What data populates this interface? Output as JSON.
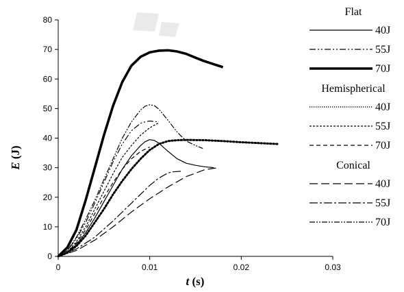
{
  "chart_data": {
    "type": "line",
    "xlabel": {
      "italic": "t",
      "unit": " (s)"
    },
    "ylabel": {
      "italic": "E",
      "unit": " (J)"
    },
    "xlim": [
      0,
      0.03
    ],
    "ylim": [
      0,
      80
    ],
    "x_ticks": [
      "0",
      "0.01",
      "0.02",
      "0.03"
    ],
    "y_ticks": [
      "0",
      "10",
      "20",
      "30",
      "40",
      "50",
      "60",
      "70",
      "80"
    ],
    "grid": false,
    "legend_position": "right",
    "legend_groups": [
      {
        "title": "Flat",
        "series": [
          "flat-40",
          "flat-55",
          "flat-70"
        ]
      },
      {
        "title": "Hemispherical",
        "series": [
          "hemi-40",
          "hemi-55",
          "hemi-70"
        ]
      },
      {
        "title": "Conical",
        "series": [
          "con-40",
          "con-55",
          "con-70"
        ]
      }
    ],
    "series": [
      {
        "id": "flat-40",
        "name": "40J",
        "color": "#000000",
        "width": 1.2,
        "dash": "",
        "x": [
          0,
          0.001,
          0.002,
          0.003,
          0.004,
          0.005,
          0.006,
          0.007,
          0.008,
          0.009,
          0.0095,
          0.01,
          0.0105,
          0.011,
          0.012,
          0.013,
          0.014,
          0.015,
          0.016,
          0.017
        ],
        "y": [
          0,
          1.5,
          4,
          8,
          13,
          18.5,
          24,
          29.5,
          34,
          37.5,
          38.8,
          39.5,
          39.2,
          38.3,
          35.5,
          33,
          31.5,
          30.8,
          30.3,
          30
        ]
      },
      {
        "id": "flat-55",
        "name": "55J",
        "color": "#000000",
        "width": 1.2,
        "dash": "9 3 2 3 2 3",
        "x": [
          0,
          0.001,
          0.002,
          0.003,
          0.004,
          0.005,
          0.006,
          0.007,
          0.008,
          0.009,
          0.0095,
          0.01,
          0.0105,
          0.011
        ],
        "y": [
          0,
          2,
          6,
          11.5,
          18,
          25,
          32,
          38,
          42.5,
          45,
          45.5,
          45.8,
          45.6,
          45.5
        ]
      },
      {
        "id": "flat-70",
        "name": "70J",
        "color": "#000000",
        "width": 3.6,
        "dash": "",
        "x": [
          0,
          0.001,
          0.002,
          0.003,
          0.004,
          0.005,
          0.006,
          0.007,
          0.008,
          0.009,
          0.01,
          0.011,
          0.012,
          0.013,
          0.014,
          0.015,
          0.016,
          0.017,
          0.018
        ],
        "y": [
          0,
          3,
          9,
          19,
          30,
          41,
          51,
          59,
          64.5,
          67.5,
          69,
          69.6,
          69.7,
          69.3,
          68.5,
          67.2,
          66,
          65,
          64
        ]
      },
      {
        "id": "hemi-40",
        "name": "40J",
        "color": "#000000",
        "width": 3.0,
        "dash": "1.5 3",
        "x": [
          0,
          0.001,
          0.002,
          0.003,
          0.004,
          0.005,
          0.006,
          0.007,
          0.008,
          0.009,
          0.01,
          0.011,
          0.012,
          0.013,
          0.014,
          0.016,
          0.018,
          0.02,
          0.022,
          0.024
        ],
        "y": [
          0,
          1.2,
          3.5,
          7,
          11.5,
          16,
          21,
          25.5,
          29.5,
          33,
          36,
          38,
          39,
          39.3,
          39.4,
          39.3,
          39,
          38.6,
          38.3,
          38
        ]
      },
      {
        "id": "hemi-55",
        "name": "55J",
        "color": "#000000",
        "width": 1.2,
        "dash": "3 2",
        "x": [
          0,
          0.001,
          0.002,
          0.003,
          0.004,
          0.005,
          0.006,
          0.007,
          0.008,
          0.009,
          0.01,
          0.011
        ],
        "y": [
          0,
          1.5,
          5,
          10,
          16,
          22,
          28,
          33.5,
          37.5,
          41,
          43.5,
          45.2
        ]
      },
      {
        "id": "hemi-70",
        "name": "70J",
        "color": "#000000",
        "width": 1.2,
        "dash": "6 4",
        "x": [
          0,
          0.001,
          0.002,
          0.003,
          0.004,
          0.005,
          0.006,
          0.007,
          0.008,
          0.009,
          0.01
        ],
        "y": [
          0,
          1.5,
          4.5,
          9,
          14.5,
          20,
          25,
          29.5,
          33,
          35.5,
          37
        ]
      },
      {
        "id": "con-40",
        "name": "40J",
        "color": "#000000",
        "width": 1.2,
        "dash": "12 5",
        "x": [
          0,
          0.002,
          0.004,
          0.006,
          0.008,
          0.01,
          0.012,
          0.014,
          0.016,
          0.0175
        ],
        "y": [
          0,
          2,
          5.5,
          10,
          15,
          19.5,
          23.5,
          27,
          29.3,
          30
        ]
      },
      {
        "id": "con-55",
        "name": "55J",
        "color": "#000000",
        "width": 1.2,
        "dash": "12 3 3 3",
        "x": [
          0,
          0.002,
          0.004,
          0.006,
          0.008,
          0.01,
          0.011,
          0.012,
          0.0125,
          0.0135
        ],
        "y": [
          0,
          2.5,
          6.5,
          12,
          18,
          24,
          26.5,
          28.2,
          28.6,
          28.8
        ]
      },
      {
        "id": "con-70",
        "name": "70J",
        "color": "#000000",
        "width": 1.2,
        "dash": "8 2 2 2 2 2",
        "x": [
          0,
          0.001,
          0.002,
          0.003,
          0.004,
          0.005,
          0.006,
          0.007,
          0.008,
          0.009,
          0.0095,
          0.01,
          0.0105,
          0.011,
          0.012,
          0.013,
          0.014,
          0.015,
          0.0158
        ],
        "y": [
          0,
          2,
          6.5,
          12.5,
          19,
          26,
          33,
          40,
          45.5,
          49.5,
          50.8,
          51.3,
          51,
          49.8,
          46,
          42,
          39,
          37.5,
          36.5
        ]
      }
    ]
  }
}
